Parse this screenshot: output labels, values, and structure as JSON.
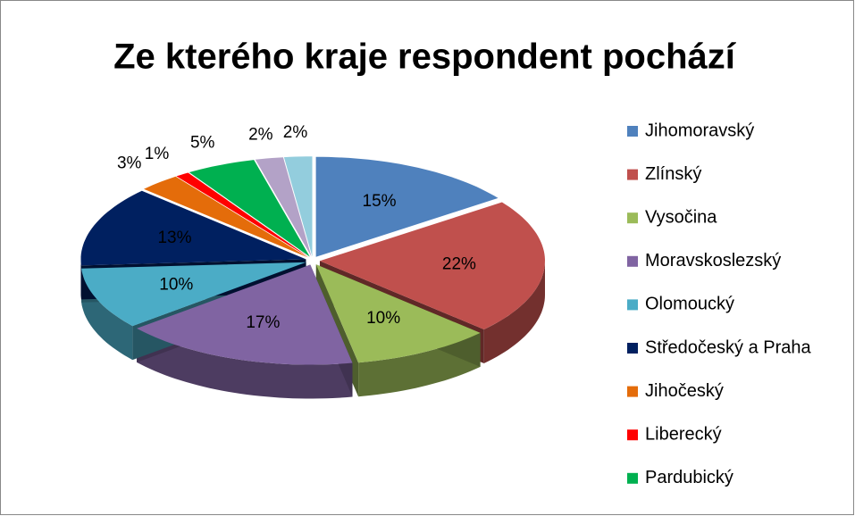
{
  "chart_data": {
    "type": "pie3d",
    "title": "Ze kterého kraje respondent pochází",
    "categories": [
      "Jihomoravský",
      "Zlínský",
      "Vysočina",
      "Moravskoslezský",
      "Olomoucký",
      "Středočeský a Praha",
      "Jihočeský",
      "Liberecký",
      "Pardubický",
      null,
      null
    ],
    "values": [
      15,
      22,
      10,
      17,
      10,
      13,
      3,
      1,
      5,
      2,
      2
    ],
    "value_labels": [
      "15%",
      "22%",
      "10%",
      "17%",
      "10%",
      "13%",
      "3%",
      "1%",
      "5%",
      "2%",
      "2%"
    ],
    "colors": [
      "#4f81bd",
      "#c0504d",
      "#9bbb59",
      "#8064a2",
      "#4bacc6",
      "#002060",
      "#e46c0a",
      "#ff0000",
      "#00b050",
      "#b3a2c7",
      "#93cddd"
    ],
    "legend": "right"
  }
}
